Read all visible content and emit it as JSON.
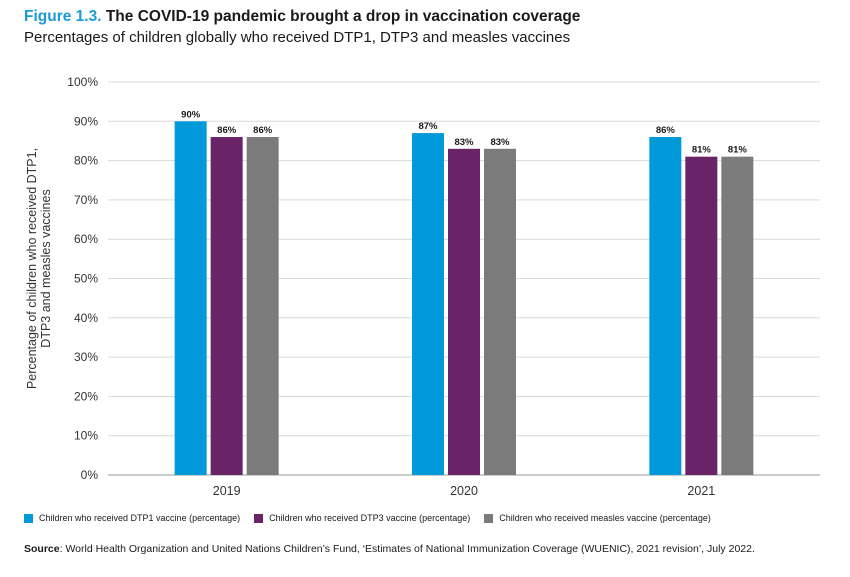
{
  "figure_label": "Figure 1.3.",
  "title": "The COVID-19 pandemic brought a drop in vaccination coverage",
  "subtitle": "Percentages of children globally who received DTP1, DTP3 and measles vaccines",
  "chart_data": {
    "type": "bar",
    "categories": [
      "2019",
      "2020",
      "2021"
    ],
    "series": [
      {
        "name": "Children who received DTP1 vaccine (percentage)",
        "values": [
          90,
          87,
          86
        ],
        "labels": [
          "90%",
          "87%",
          "86%"
        ],
        "color": "#009ada"
      },
      {
        "name": "Children who received DTP3 vaccine (percentage)",
        "values": [
          86,
          83,
          81
        ],
        "labels": [
          "86%",
          "83%",
          "81%"
        ],
        "color": "#6a2367"
      },
      {
        "name": "Children who received measles vaccine (percentage)",
        "values": [
          86,
          83,
          81
        ],
        "labels": [
          "86%",
          "83%",
          "81%"
        ],
        "color": "#7b7b7b"
      }
    ],
    "ylabel_lines": [
      "Percentage of children who received DTP1,",
      "DTP3 and measles vaccines"
    ],
    "xlabel": "",
    "ylim": [
      0,
      100
    ],
    "yticks": [
      0,
      10,
      20,
      30,
      40,
      50,
      60,
      70,
      80,
      90,
      100
    ],
    "ytick_labels": [
      "0%",
      "10%",
      "20%",
      "30%",
      "40%",
      "50%",
      "60%",
      "70%",
      "80%",
      "90%",
      "100%"
    ],
    "grid": true,
    "legend_position": "bottom"
  },
  "source": {
    "label": "Source",
    "text": ": World Health Organization and United Nations Children’s Fund, ‘Estimates of National Immunization Coverage (WUENIC), 2021 revision’, July 2022."
  }
}
